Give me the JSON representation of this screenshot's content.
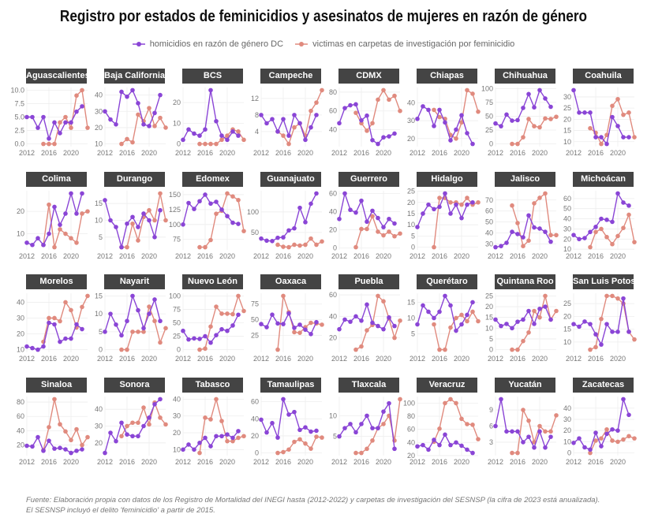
{
  "chart_data": {
    "type": "line",
    "title": "Registro por estados de feminicidios y asesinatos de mujeres en razón de género",
    "series_names": [
      "homicidios en razón de género DC",
      "victimas en carpetas de investigación por feminicidio"
    ],
    "colors": {
      "homicidios": "#8a45d6",
      "victimas": "#e08a7e"
    },
    "legend": "top",
    "grid": true,
    "x_purple": [
      2012,
      2013,
      2014,
      2015,
      2016,
      2017,
      2018,
      2019,
      2020,
      2021,
      2022
    ],
    "x_pink": [
      2015,
      2016,
      2017,
      2018,
      2019,
      2020,
      2021,
      2022,
      2023
    ],
    "xticks": [
      "2012",
      "2016",
      "2020"
    ],
    "xlim": [
      2012,
      2023
    ],
    "panels": [
      {
        "name": "Aguascalientes",
        "yticks": [
          "0.0",
          "2.5",
          "5.0",
          "7.5",
          "10.0"
        ],
        "homicidios": [
          5,
          5,
          3,
          5,
          1,
          4,
          2,
          4,
          4,
          6,
          7
        ],
        "victimas": [
          0,
          0,
          0,
          4,
          5,
          3,
          9,
          10,
          3
        ]
      },
      {
        "name": "Baja California",
        "yticks": [
          "10",
          "20",
          "30",
          "40"
        ],
        "homicidios": [
          30,
          25,
          22,
          42,
          39,
          43,
          35,
          22,
          21,
          29,
          40
        ],
        "victimas": [
          10,
          13,
          11,
          28,
          24,
          32,
          21,
          26,
          20
        ]
      },
      {
        "name": "BCS",
        "yticks": [
          "0",
          "10",
          "20"
        ],
        "homicidios": [
          2,
          7,
          5,
          4,
          7,
          26,
          11,
          4,
          2,
          6,
          4
        ],
        "victimas": [
          0,
          0,
          0,
          0,
          2,
          4,
          7,
          6,
          2
        ]
      },
      {
        "name": "Campeche",
        "yticks": [
          "4",
          "8",
          "12"
        ],
        "homicidios": [
          8,
          6,
          7,
          4,
          7,
          3,
          8,
          6,
          2,
          5,
          8
        ],
        "victimas": [
          4,
          3,
          1,
          5,
          6,
          3,
          9,
          11,
          14
        ]
      },
      {
        "name": "CDMX",
        "yticks": [
          "40",
          "60",
          "80"
        ],
        "homicidios": [
          47,
          63,
          66,
          67,
          50,
          55,
          29,
          25,
          32,
          33,
          36
        ],
        "victimas": [
          58,
          47,
          39,
          47,
          72,
          82,
          72,
          76,
          60
        ]
      },
      {
        "name": "Chiapas",
        "yticks": [
          "20",
          "30",
          "40"
        ],
        "homicidios": [
          31,
          38,
          36,
          27,
          36,
          29,
          19,
          25,
          33,
          23,
          17
        ],
        "victimas": [
          36,
          32,
          31,
          22,
          20,
          29,
          47,
          45,
          35
        ]
      },
      {
        "name": "Chihuahua",
        "yticks": [
          "0",
          "25",
          "50",
          "75",
          "100"
        ],
        "homicidios": [
          37,
          32,
          53,
          42,
          43,
          65,
          90,
          66,
          97,
          82,
          67
        ],
        "victimas": [
          0,
          0,
          12,
          45,
          32,
          30,
          46,
          45,
          49
        ]
      },
      {
        "name": "Coahuila",
        "yticks": [
          "10",
          "15",
          "20",
          "25",
          "30"
        ],
        "homicidios": [
          33,
          23,
          23,
          23,
          12,
          12,
          9,
          21,
          17,
          12,
          12
        ],
        "victimas": [
          16,
          14,
          9,
          13,
          26,
          29,
          22,
          23,
          12
        ]
      },
      {
        "name": "Colima",
        "yticks": [
          "10",
          "20"
        ],
        "homicidios": [
          6,
          5,
          8,
          5,
          10,
          22,
          14,
          19,
          28,
          19,
          28
        ],
        "victimas": [
          5,
          23,
          4,
          12,
          10,
          8,
          6,
          19,
          20
        ]
      },
      {
        "name": "Durango",
        "yticks": [
          "5",
          "10",
          "15"
        ],
        "homicidios": [
          16,
          10,
          8,
          2,
          9,
          11,
          8,
          12,
          10,
          5,
          13
        ],
        "victimas": [
          2,
          2,
          9,
          4,
          11,
          13,
          10,
          18,
          10
        ]
      },
      {
        "name": "Edomex",
        "yticks": [
          "75",
          "100",
          "125",
          "150"
        ],
        "homicidios": [
          100,
          136,
          126,
          139,
          150,
          135,
          138,
          125,
          114,
          103,
          101
        ],
        "victimas": [
          62,
          62,
          74,
          118,
          123,
          152,
          147,
          141,
          89
        ]
      },
      {
        "name": "Guanajuato",
        "yticks": [
          "50",
          "100"
        ],
        "homicidios": [
          35,
          30,
          29,
          37,
          38,
          55,
          60,
          110,
          75,
          120,
          145
        ],
        "victimas": [
          20,
          15,
          14,
          20,
          18,
          20,
          35,
          20,
          28
        ]
      },
      {
        "name": "Guerrero",
        "yticks": [
          "0",
          "20",
          "40",
          "60"
        ],
        "homicidios": [
          32,
          60,
          42,
          39,
          52,
          29,
          41,
          33,
          23,
          32,
          27
        ],
        "victimas": [
          1,
          21,
          21,
          35,
          18,
          14,
          18,
          13,
          16
        ]
      },
      {
        "name": "Hidalgo",
        "yticks": [
          "0",
          "5",
          "10",
          "15",
          "20",
          "25"
        ],
        "homicidios": [
          9,
          15,
          19,
          17,
          18,
          24,
          15,
          19,
          13,
          19,
          20
        ],
        "victimas": [
          0,
          22,
          22,
          20,
          20,
          19,
          22,
          19,
          20
        ]
      },
      {
        "name": "Jalisco",
        "yticks": [
          "30",
          "40",
          "50",
          "60",
          "70"
        ],
        "homicidios": [
          27,
          28,
          31,
          41,
          39,
          36,
          56,
          45,
          44,
          41,
          32
        ],
        "victimas": [
          65,
          49,
          28,
          33,
          67,
          72,
          76,
          38,
          38
        ]
      },
      {
        "name": "Michoácan",
        "yticks": [
          "10",
          "20",
          "30",
          "40",
          "50",
          "60"
        ],
        "homicidios": [
          24,
          20,
          21,
          27,
          32,
          40,
          39,
          37,
          65,
          56,
          53
        ],
        "victimas": [
          12,
          27,
          30,
          22,
          15,
          23,
          31,
          44,
          17
        ]
      },
      {
        "name": "Morelos",
        "yticks": [
          "10",
          "20",
          "30",
          "40"
        ],
        "homicidios": [
          12,
          11,
          10,
          12,
          27,
          26,
          15,
          17,
          17,
          26,
          23
        ],
        "victimas": [
          15,
          30,
          30,
          28,
          40,
          35,
          24,
          37,
          44
        ]
      },
      {
        "name": "Nayarit",
        "yticks": [
          "0",
          "5",
          "10",
          "15"
        ],
        "homicidios": [
          5,
          10,
          7,
          4,
          8,
          15,
          11,
          6,
          10,
          14,
          8
        ],
        "victimas": [
          0,
          0,
          5,
          5,
          5,
          12,
          8,
          2,
          6
        ]
      },
      {
        "name": "Nuevo León",
        "yticks": [
          "0",
          "25",
          "50",
          "75",
          "100"
        ],
        "homicidios": [
          35,
          19,
          21,
          20,
          25,
          13,
          27,
          38,
          35,
          45,
          65
        ],
        "victimas": [
          0,
          2,
          43,
          80,
          67,
          67,
          66,
          100,
          72
        ]
      },
      {
        "name": "Oaxaca",
        "yticks": [
          "25",
          "50",
          "75"
        ],
        "homicidios": [
          43,
          38,
          58,
          44,
          43,
          60,
          37,
          42,
          34,
          27,
          46
        ],
        "victimas": [
          2,
          88,
          62,
          30,
          29,
          38,
          45,
          44,
          42
        ]
      },
      {
        "name": "Puebla",
        "yticks": [
          "20",
          "40",
          "60"
        ],
        "homicidios": [
          28,
          37,
          35,
          40,
          36,
          51,
          34,
          31,
          28,
          39,
          31
        ],
        "victimas": [
          9,
          12,
          27,
          32,
          59,
          54,
          38,
          20,
          36
        ]
      },
      {
        "name": "Querétaro",
        "yticks": [
          "5",
          "10",
          "15"
        ],
        "homicidios": [
          8,
          14,
          12,
          10,
          12,
          17,
          14,
          6,
          8,
          11,
          15
        ],
        "victimas": [
          8,
          0,
          0,
          7,
          10,
          11,
          9,
          12,
          9
        ]
      },
      {
        "name": "Quintana Roo",
        "yticks": [
          "0",
          "5",
          "10",
          "15",
          "20",
          "25"
        ],
        "homicidios": [
          14,
          11,
          12,
          10,
          13,
          14,
          18,
          12,
          19,
          20,
          14
        ],
        "victimas": [
          0,
          0,
          4,
          8,
          18,
          15,
          25,
          14,
          18
        ]
      },
      {
        "name": "San Luis Potosi",
        "yticks": [
          "10",
          "15",
          "20",
          "25"
        ],
        "homicidios": [
          17,
          16,
          18,
          17,
          13,
          9,
          17,
          14,
          14,
          27,
          14
        ],
        "victimas": [
          7,
          8,
          19,
          28,
          28,
          27,
          25,
          14,
          11
        ]
      },
      {
        "name": "Sinaloa",
        "yticks": [
          "20",
          "40",
          "60",
          "80"
        ],
        "homicidios": [
          19,
          18,
          31,
          12,
          26,
          15,
          16,
          14,
          9,
          12,
          14
        ],
        "victimas": [
          13,
          45,
          84,
          49,
          39,
          27,
          42,
          20,
          31
        ]
      },
      {
        "name": "Sonora",
        "yticks": [
          "20",
          "30",
          "40"
        ],
        "homicidios": [
          14,
          26,
          21,
          32,
          25,
          24,
          24,
          30,
          35,
          43,
          46
        ],
        "victimas": [
          24,
          30,
          32,
          32,
          41,
          31,
          44,
          35,
          31
        ]
      },
      {
        "name": "Tabasco",
        "yticks": [
          "10",
          "20",
          "30",
          "40"
        ],
        "homicidios": [
          10,
          13,
          10,
          14,
          17,
          12,
          18,
          18,
          19,
          17,
          21
        ],
        "victimas": [
          8,
          29,
          28,
          40,
          27,
          15,
          15,
          17,
          18
        ]
      },
      {
        "name": "Tamaulipas",
        "yticks": [
          "0",
          "20",
          "40",
          "60"
        ],
        "homicidios": [
          39,
          24,
          35,
          18,
          63,
          45,
          48,
          27,
          30,
          25,
          26
        ],
        "victimas": [
          0,
          1,
          4,
          13,
          16,
          11,
          5,
          19,
          18
        ]
      },
      {
        "name": "Tlaxcala",
        "yticks": [
          "5",
          "10"
        ],
        "homicidios": [
          5,
          7,
          8,
          6,
          8,
          10,
          7,
          7,
          11,
          13,
          2
        ],
        "victimas": [
          1,
          1,
          2,
          4,
          7,
          8,
          10,
          4,
          14
        ]
      },
      {
        "name": "Veracruz",
        "yticks": [
          "20",
          "40",
          "60",
          "80",
          "100"
        ],
        "homicidios": [
          34,
          36,
          29,
          44,
          36,
          52,
          36,
          40,
          35,
          29,
          24
        ],
        "victimas": [
          41,
          61,
          100,
          106,
          100,
          76,
          68,
          67,
          45
        ]
      },
      {
        "name": "Yucatán",
        "yticks": [
          "3",
          "6",
          "9"
        ],
        "homicidios": [
          6,
          11,
          5,
          5,
          5,
          3,
          4,
          2,
          5,
          2,
          4
        ],
        "victimas": [
          1,
          1,
          9,
          7,
          3,
          6,
          5,
          5,
          8
        ]
      },
      {
        "name": "Zacatecas",
        "yticks": [
          "0",
          "10",
          "20",
          "30",
          "40"
        ],
        "homicidios": [
          9,
          13,
          5,
          3,
          18,
          6,
          17,
          21,
          20,
          48,
          34
        ],
        "victimas": [
          0,
          11,
          13,
          21,
          11,
          10,
          12,
          15,
          13
        ]
      }
    ]
  },
  "footnote": {
    "line1": "Fuente: Elaboración propia con datos de los Registro de Mortalidad del INEGI hasta (2012-2022) y carpetas de investigación del SESNSP (la cifra de 2023 está anualizada).",
    "line2": "El SESNSP incluyó el delito 'feminicidio' a partir de 2015."
  }
}
